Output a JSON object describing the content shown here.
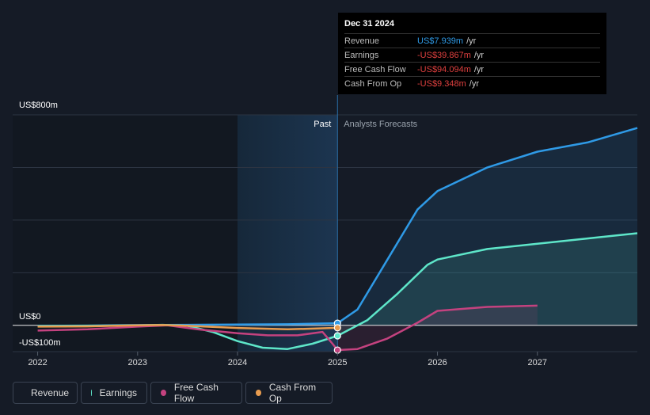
{
  "chart_data": {
    "type": "line",
    "y_axis": {
      "top_label": "US$800m",
      "zero_label": "US$0",
      "bottom_label": "-US$100m",
      "ylim": [
        -100,
        800
      ]
    },
    "x_axis": {
      "tick_labels": [
        "2022",
        "2023",
        "2024",
        "2025",
        "2026",
        "2027"
      ],
      "ticks": [
        2022,
        2023,
        2024,
        2025,
        2026,
        2027
      ],
      "xlim": [
        2021.75,
        2028.0
      ]
    },
    "past_label": "Past",
    "forecast_label": "Analysts Forecasts",
    "divider_x": 2025.0,
    "highlight_start": 2024.0,
    "series": [
      {
        "name": "Revenue",
        "color": "#2f9ae6",
        "points": [
          [
            2022.0,
            -2
          ],
          [
            2022.5,
            -1
          ],
          [
            2023.0,
            1
          ],
          [
            2023.5,
            2
          ],
          [
            2024.0,
            3
          ],
          [
            2024.5,
            4
          ],
          [
            2025.0,
            8
          ],
          [
            2025.2,
            60
          ],
          [
            2025.5,
            250
          ],
          [
            2025.8,
            440
          ],
          [
            2026.0,
            510
          ],
          [
            2026.5,
            600
          ],
          [
            2027.0,
            660
          ],
          [
            2027.5,
            695
          ],
          [
            2028.0,
            750
          ]
        ],
        "forecast_from": 2025.0
      },
      {
        "name": "Earnings",
        "color": "#5ee6c9",
        "points": [
          [
            2022.0,
            -3
          ],
          [
            2022.5,
            -2
          ],
          [
            2023.0,
            0
          ],
          [
            2023.25,
            2
          ],
          [
            2023.5,
            -2
          ],
          [
            2023.75,
            -25
          ],
          [
            2024.0,
            -60
          ],
          [
            2024.25,
            -85
          ],
          [
            2024.5,
            -90
          ],
          [
            2024.75,
            -70
          ],
          [
            2025.0,
            -39.867
          ],
          [
            2025.3,
            20
          ],
          [
            2025.6,
            120
          ],
          [
            2025.9,
            230
          ],
          [
            2026.0,
            250
          ],
          [
            2026.5,
            290
          ],
          [
            2027.0,
            310
          ],
          [
            2027.5,
            330
          ],
          [
            2028.0,
            350
          ]
        ],
        "forecast_from": 2025.0
      },
      {
        "name": "Free Cash Flow",
        "color": "#c4427f",
        "points": [
          [
            2022.0,
            -20
          ],
          [
            2022.5,
            -15
          ],
          [
            2023.0,
            -5
          ],
          [
            2023.3,
            0
          ],
          [
            2023.6,
            -15
          ],
          [
            2024.0,
            -30
          ],
          [
            2024.3,
            -38
          ],
          [
            2024.6,
            -38
          ],
          [
            2024.85,
            -25
          ],
          [
            2024.95,
            -70
          ],
          [
            2025.0,
            -94.094
          ],
          [
            2025.2,
            -90
          ],
          [
            2025.5,
            -50
          ],
          [
            2025.8,
            10
          ],
          [
            2026.0,
            55
          ],
          [
            2026.5,
            70
          ],
          [
            2027.0,
            75
          ]
        ],
        "forecast_from": 2025.0
      },
      {
        "name": "Cash From Op",
        "color": "#e89c4f",
        "points": [
          [
            2022.0,
            -5
          ],
          [
            2022.5,
            -4
          ],
          [
            2023.0,
            0
          ],
          [
            2023.25,
            1
          ],
          [
            2023.5,
            -2
          ],
          [
            2024.0,
            -10
          ],
          [
            2024.5,
            -15
          ],
          [
            2024.8,
            -12
          ],
          [
            2025.0,
            -9.348
          ]
        ],
        "forecast_from": null
      }
    ]
  },
  "tooltip": {
    "date": "Dec 31 2024",
    "rows": [
      {
        "label": "Revenue",
        "value": "US$7.939m",
        "unit": "/yr",
        "color": "#2f9ae6"
      },
      {
        "label": "Earnings",
        "value": "-US$39.867m",
        "unit": "/yr",
        "color": "#e0403f"
      },
      {
        "label": "Free Cash Flow",
        "value": "-US$94.094m",
        "unit": "/yr",
        "color": "#e0403f"
      },
      {
        "label": "Cash From Op",
        "value": "-US$9.348m",
        "unit": "/yr",
        "color": "#e0403f"
      }
    ]
  },
  "legend": [
    {
      "label": "Revenue",
      "color": "#2f9ae6"
    },
    {
      "label": "Earnings",
      "color": "#5ee6c9"
    },
    {
      "label": "Free Cash Flow",
      "color": "#c4427f"
    },
    {
      "label": "Cash From Op",
      "color": "#e89c4f"
    }
  ],
  "colors": {
    "background": "#151b26",
    "grid": "#2c3442",
    "highlight": "#1b2b3d"
  }
}
